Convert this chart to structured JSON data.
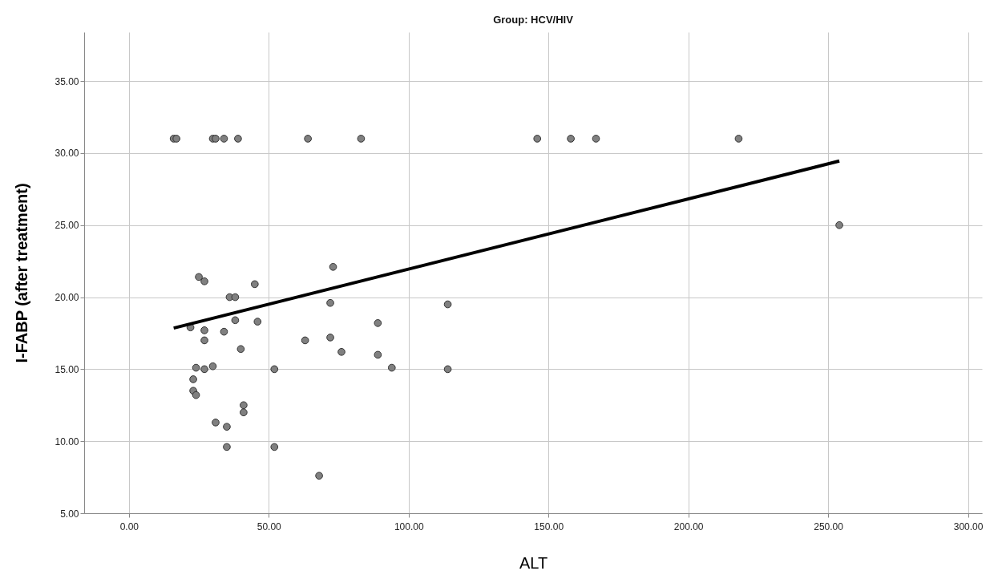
{
  "chart_data": {
    "type": "scatter",
    "title": "Group: HCV/HIV",
    "xlabel": "ALT",
    "ylabel": "I-FABP (after treatment)",
    "xlim": [
      -16,
      305
    ],
    "ylim": [
      5,
      38.4
    ],
    "xticks": [
      {
        "value": 0,
        "label": "0.00"
      },
      {
        "value": 50,
        "label": "50.00"
      },
      {
        "value": 100,
        "label": "100.00"
      },
      {
        "value": 150,
        "label": "150.00"
      },
      {
        "value": 200,
        "label": "200.00"
      },
      {
        "value": 250,
        "label": "250.00"
      },
      {
        "value": 300,
        "label": "300.00"
      }
    ],
    "yticks": [
      {
        "value": 5,
        "label": "5.00"
      },
      {
        "value": 10,
        "label": "10.00"
      },
      {
        "value": 15,
        "label": "15.00"
      },
      {
        "value": 20,
        "label": "20.00"
      },
      {
        "value": 25,
        "label": "25.00"
      },
      {
        "value": 30,
        "label": "30.00"
      },
      {
        "value": 35,
        "label": "35.00"
      }
    ],
    "grid": true,
    "series": [
      {
        "marker": "circle",
        "color": "#808080",
        "x": [
          16,
          17,
          30,
          31,
          34,
          39,
          64,
          83,
          146,
          158,
          167,
          218,
          254,
          73,
          25,
          27,
          45,
          36,
          38,
          72,
          114,
          38,
          46,
          89,
          22,
          27,
          34,
          72,
          27,
          63,
          40,
          76,
          89,
          24,
          30,
          27,
          52,
          94,
          114,
          23,
          23,
          24,
          41,
          41,
          31,
          35,
          35,
          52,
          68
        ],
        "values": [
          31,
          31,
          31,
          31,
          31,
          31,
          31,
          31,
          31,
          31,
          31,
          31,
          25,
          22.1,
          21.4,
          21.1,
          20.9,
          20,
          20,
          19.6,
          19.5,
          18.4,
          18.3,
          18.2,
          17.9,
          17.7,
          17.6,
          17.2,
          17,
          17,
          16.4,
          16.2,
          16,
          15.1,
          15.2,
          15,
          15,
          15.1,
          15,
          14.3,
          13.5,
          13.2,
          12.5,
          12,
          11.3,
          11,
          9.6,
          9.6,
          7.6
        ]
      },
      {
        "type": "line",
        "color": "#000000",
        "line_style": "solid",
        "x": [
          16,
          254
        ],
        "values": [
          17.85,
          29.45
        ]
      }
    ]
  }
}
